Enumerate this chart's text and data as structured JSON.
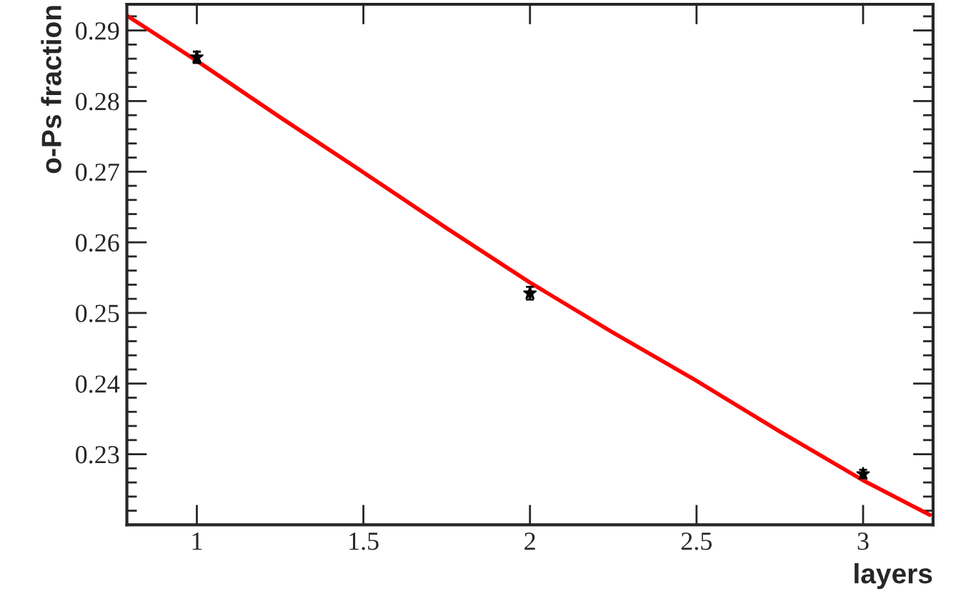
{
  "chart_data": {
    "type": "scatter",
    "xlabel": "layers",
    "ylabel": "o-Ps fraction",
    "xlim": [
      0.79,
      3.21
    ],
    "ylim": [
      0.22,
      0.2937
    ],
    "xticks": [
      1,
      1.5,
      2,
      2.5,
      3
    ],
    "yticks": [
      {
        "value": 0.222,
        "label": null
      },
      {
        "value": 0.224,
        "label": null
      },
      {
        "value": 0.226,
        "label": null
      },
      {
        "value": 0.228,
        "label": null
      },
      0.23,
      {
        "value": 0.232,
        "label": null
      },
      {
        "value": 0.234,
        "label": null
      },
      {
        "value": 0.236,
        "label": null
      },
      {
        "value": 0.238,
        "label": null
      },
      0.24,
      {
        "value": 0.242,
        "label": null
      },
      {
        "value": 0.244,
        "label": null
      },
      {
        "value": 0.246,
        "label": null
      },
      {
        "value": 0.248,
        "label": null
      },
      0.25,
      {
        "value": 0.252,
        "label": null
      },
      {
        "value": 0.254,
        "label": null
      },
      {
        "value": 0.256,
        "label": null
      },
      {
        "value": 0.258,
        "label": null
      },
      0.26,
      {
        "value": 0.262,
        "label": null
      },
      {
        "value": 0.264,
        "label": null
      },
      {
        "value": 0.266,
        "label": null
      },
      {
        "value": 0.268,
        "label": null
      },
      0.27,
      {
        "value": 0.272,
        "label": null
      },
      {
        "value": 0.274,
        "label": null
      },
      {
        "value": 0.276,
        "label": null
      },
      {
        "value": 0.278,
        "label": null
      },
      0.28,
      {
        "value": 0.282,
        "label": null
      },
      {
        "value": 0.284,
        "label": null
      },
      {
        "value": 0.286,
        "label": null
      },
      {
        "value": 0.288,
        "label": null
      },
      0.29,
      {
        "value": 0.292,
        "label": null
      }
    ],
    "grid": false,
    "legend": false,
    "marker": "star",
    "series": [
      {
        "color": "#000000",
        "x": [
          1,
          2,
          3
        ],
        "values": [
          0.2862,
          0.2528,
          0.2272
        ],
        "errors": [
          0.0008,
          0.0009,
          0.0006
        ]
      },
      {
        "type": "line",
        "color": "#ff0000",
        "line_style": "solid",
        "marker": "none",
        "x": [
          0.79,
          1.0,
          1.25,
          1.5,
          1.75,
          2.0,
          2.25,
          2.5,
          2.75,
          3.0,
          3.2
        ],
        "values": [
          0.2921,
          0.2857,
          0.2777,
          0.2699,
          0.262,
          0.2543,
          0.2472,
          0.2404,
          0.2332,
          0.2263,
          0.2214
        ]
      }
    ]
  }
}
